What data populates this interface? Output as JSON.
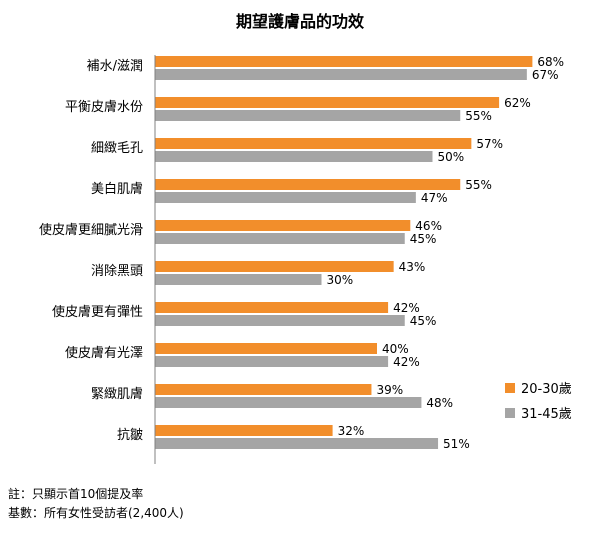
{
  "chart_data": {
    "type": "bar",
    "orientation": "horizontal",
    "title": "期望護膚品的功效",
    "categories": [
      "補水/滋潤",
      "平衡皮膚水份",
      "細緻毛孔",
      "美白肌膚",
      "使皮膚更細膩光滑",
      "消除黑頭",
      "使皮膚更有彈性",
      "使皮膚有光澤",
      "緊緻肌膚",
      "抗皺"
    ],
    "series": [
      {
        "name": "20-30歲",
        "color": "#F28E2B",
        "values": [
          68,
          62,
          57,
          55,
          46,
          43,
          42,
          40,
          39,
          32
        ],
        "labels": [
          "68%",
          "62%",
          "57%",
          "55%",
          "46%",
          "43%",
          "42%",
          "40%",
          "39%",
          "32%"
        ]
      },
      {
        "name": "31-45歲",
        "color": "#A5A5A5",
        "values": [
          67,
          55,
          50,
          47,
          45,
          30,
          45,
          42,
          48,
          51
        ],
        "labels": [
          "67%",
          "55%",
          "50%",
          "47%",
          "45%",
          "30%",
          "45%",
          "42%",
          "48%",
          "51%"
        ]
      }
    ],
    "unit": "%",
    "xlim": [
      0,
      100
    ],
    "legend_position": "right",
    "grid": false
  },
  "footnotes": [
    "註：只顯示首10個提及率",
    "基數：所有女性受訪者(2,400人)"
  ]
}
